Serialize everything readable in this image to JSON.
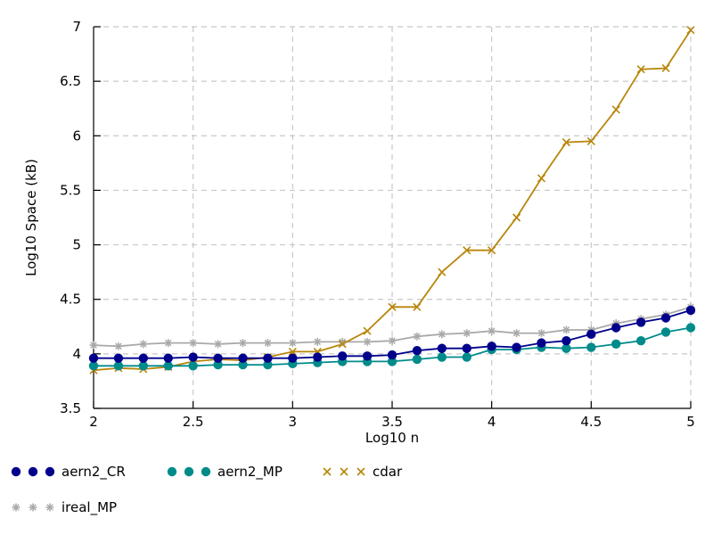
{
  "chart_data": {
    "type": "line",
    "title": "",
    "xlabel": "Log10 n",
    "ylabel": "Log10 Space (kB)",
    "xlim": [
      2,
      5
    ],
    "ylim": [
      3.5,
      7
    ],
    "xticks": [
      2,
      2.5,
      3,
      3.5,
      4,
      4.5,
      5
    ],
    "yticks": [
      3.5,
      4,
      4.5,
      5,
      5.5,
      6,
      6.5,
      7
    ],
    "xtick_labels": [
      "2",
      "2.5",
      "3",
      "3.5",
      "4",
      "4.5",
      "5"
    ],
    "ytick_labels": [
      "3.5",
      "4",
      "4.5",
      "5",
      "5.5",
      "6",
      "6.5",
      "7"
    ],
    "grid": true,
    "legend_position": "bottom",
    "x": [
      2.0,
      2.125,
      2.25,
      2.375,
      2.5,
      2.625,
      2.75,
      2.875,
      3.0,
      3.125,
      3.25,
      3.375,
      3.5,
      3.625,
      3.75,
      3.875,
      4.0,
      4.125,
      4.25,
      4.375,
      4.5,
      4.625,
      4.75,
      4.875,
      5.0
    ],
    "series": [
      {
        "name": "aern2_CR",
        "color": "#00008b",
        "marker": "circle",
        "values": [
          3.96,
          3.96,
          3.96,
          3.96,
          3.97,
          3.96,
          3.96,
          3.96,
          3.96,
          3.97,
          3.98,
          3.98,
          3.99,
          4.03,
          4.05,
          4.05,
          4.07,
          4.06,
          4.1,
          4.12,
          4.18,
          4.24,
          4.29,
          4.33,
          4.4
        ]
      },
      {
        "name": "aern2_MP",
        "color": "#008b8b",
        "marker": "circle",
        "values": [
          3.89,
          3.89,
          3.89,
          3.89,
          3.89,
          3.9,
          3.9,
          3.9,
          3.91,
          3.92,
          3.93,
          3.93,
          3.93,
          3.95,
          3.97,
          3.97,
          4.04,
          4.04,
          4.06,
          4.05,
          4.06,
          4.09,
          4.12,
          4.2,
          4.24
        ]
      },
      {
        "name": "cdar",
        "color": "#b8860b",
        "marker": "x",
        "values": [
          3.85,
          3.87,
          3.86,
          3.88,
          3.93,
          3.95,
          3.94,
          3.97,
          4.02,
          4.02,
          4.09,
          4.21,
          4.43,
          4.43,
          4.75,
          4.95,
          4.95,
          5.25,
          5.61,
          5.94,
          5.95,
          6.24,
          6.61,
          6.62,
          6.97
        ]
      },
      {
        "name": "ireal_MP",
        "color": "#a9a9a9",
        "marker": "star",
        "values": [
          4.08,
          4.07,
          4.09,
          4.1,
          4.1,
          4.09,
          4.1,
          4.1,
          4.1,
          4.11,
          4.11,
          4.11,
          4.12,
          4.16,
          4.18,
          4.19,
          4.21,
          4.19,
          4.19,
          4.22,
          4.22,
          4.28,
          4.32,
          4.36,
          4.43
        ]
      }
    ]
  }
}
